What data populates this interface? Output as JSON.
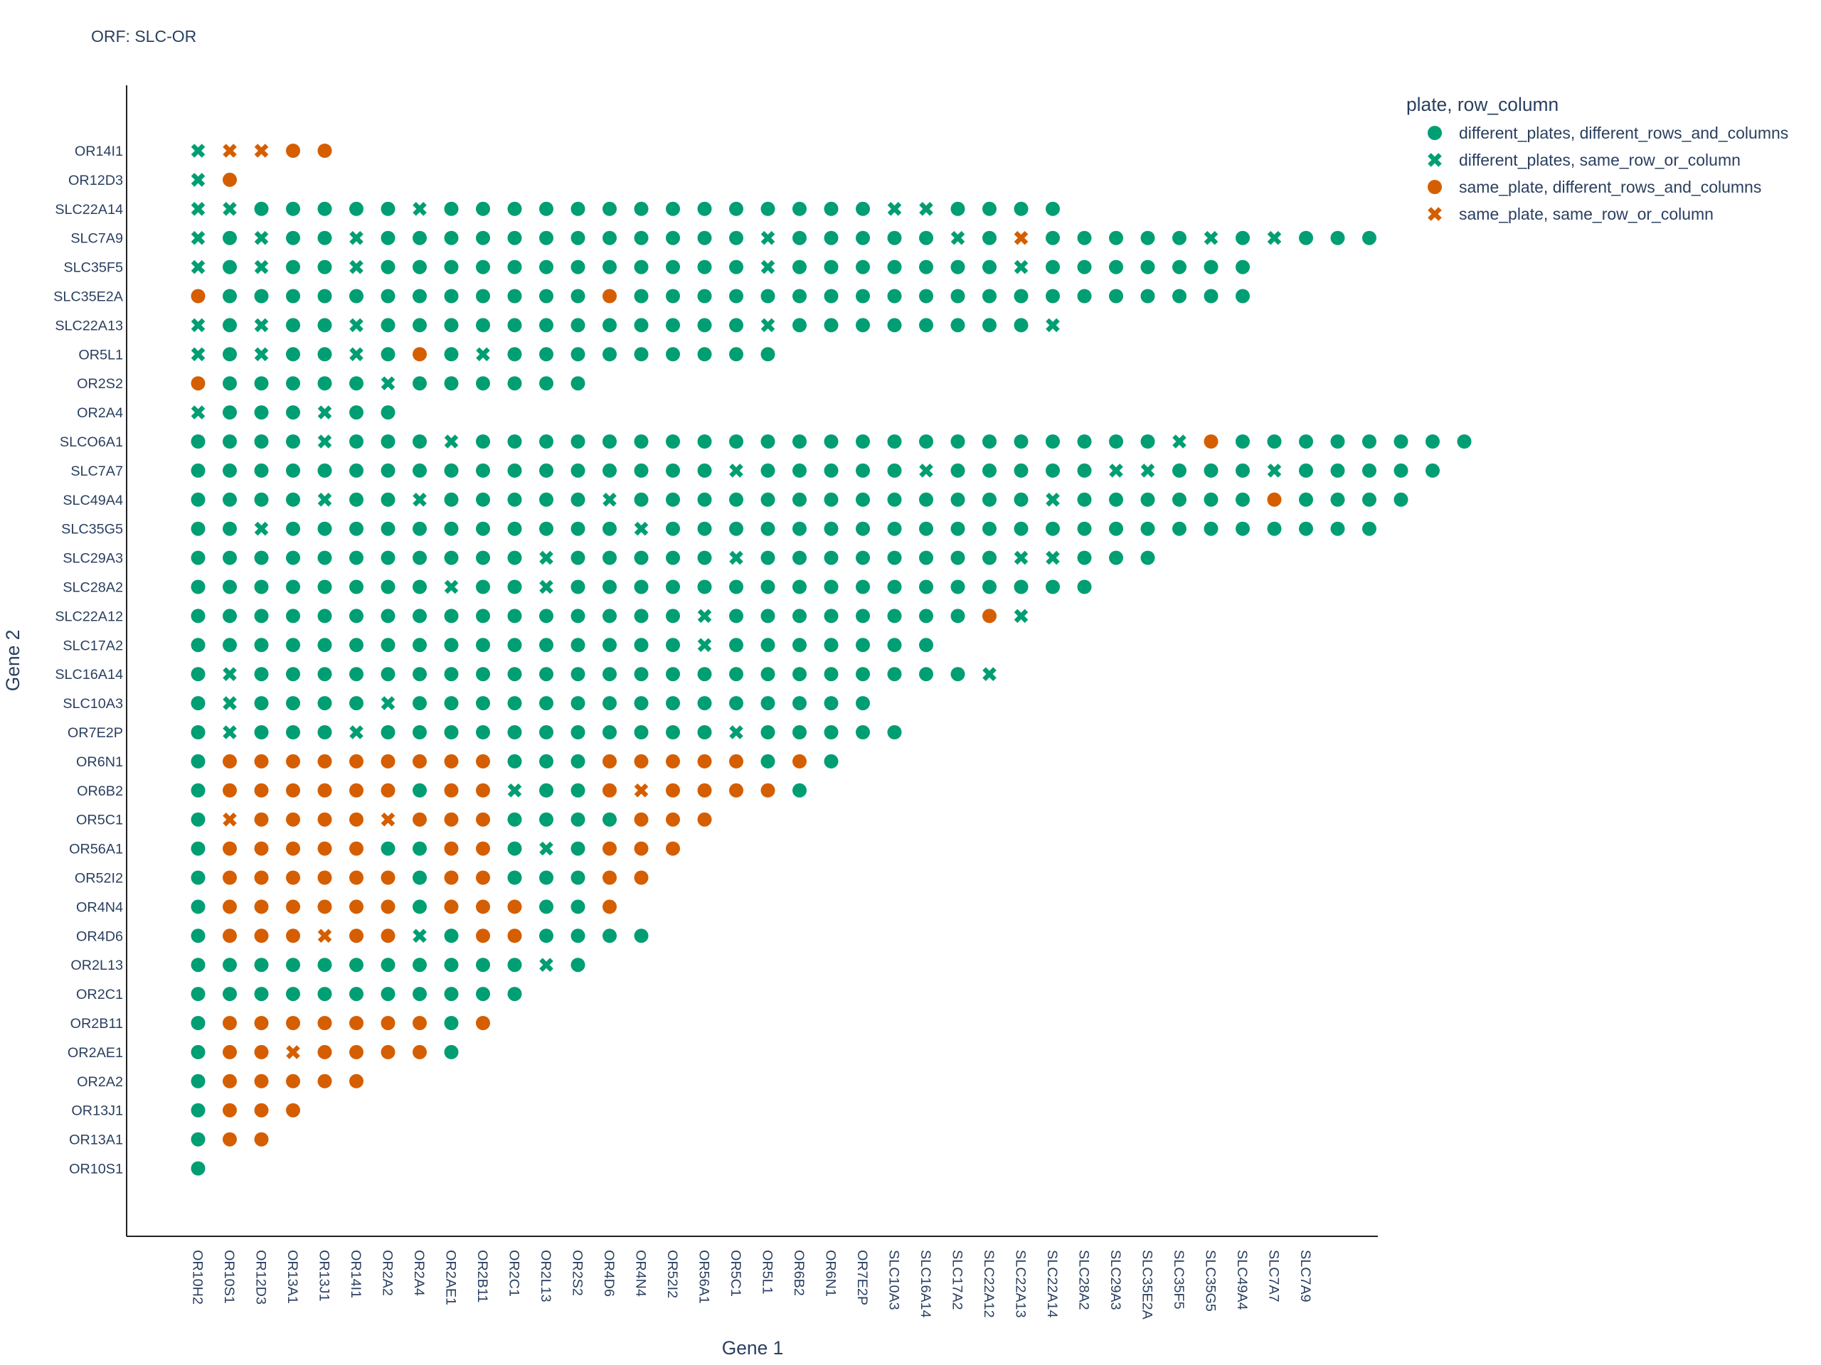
{
  "chart_data": {
    "type": "scatter",
    "title": "ORF: SLC-OR",
    "xlabel": "Gene 1",
    "ylabel": "Gene 2",
    "legend_title": "plate, row_column",
    "legend_position": "top-right",
    "grid": false,
    "x_categories": [
      "OR10H2",
      "OR10S1",
      "OR12D3",
      "OR13A1",
      "OR13J1",
      "OR14I1",
      "OR2A2",
      "OR2A4",
      "OR2AE1",
      "OR2B11",
      "OR2C1",
      "OR2L13",
      "OR2S2",
      "OR4D6",
      "OR4N4",
      "OR52I2",
      "OR56A1",
      "OR5C1",
      "OR5L1",
      "OR6B2",
      "OR6N1",
      "OR7E2P",
      "SLC10A3",
      "SLC16A14",
      "SLC17A2",
      "SLC22A12",
      "SLC22A13",
      "SLC22A14",
      "SLC28A2",
      "SLC29A3",
      "SLC35E2A",
      "SLC35F5",
      "SLC35G5",
      "SLC49A4",
      "SLC7A7",
      "SLC7A9"
    ],
    "y_categories": [
      "OR10S1",
      "OR13A1",
      "OR13J1",
      "OR2A2",
      "OR2AE1",
      "OR2B11",
      "OR2C1",
      "OR2L13",
      "OR4D6",
      "OR4N4",
      "OR52I2",
      "OR56A1",
      "OR5C1",
      "OR6B2",
      "OR6N1",
      "OR7E2P",
      "SLC10A3",
      "SLC16A14",
      "SLC17A2",
      "SLC22A12",
      "SLC28A2",
      "SLC29A3",
      "SLC35G5",
      "SLC49A4",
      "SLC7A7",
      "SLCO6A1",
      "OR2A4",
      "OR2S2",
      "OR5L1",
      "SLC22A13",
      "SLC35E2A",
      "SLC35F5",
      "SLC7A9",
      "SLC22A14",
      "OR12D3",
      "OR14I1"
    ],
    "series": [
      {
        "name": "different_plates, different_rows_and_columns",
        "color": "#009e73",
        "symbol": "circle"
      },
      {
        "name": "different_plates, same_row_or_column",
        "color": "#009e73",
        "symbol": "x"
      },
      {
        "name": "same_plate, different_rows_and_columns",
        "color": "#d55e00",
        "symbol": "circle"
      },
      {
        "name": "same_plate, same_row_or_column",
        "color": "#d55e00",
        "symbol": "x"
      }
    ],
    "legend_order": [
      0,
      1,
      2,
      3
    ],
    "rows": [
      {
        "y": "OR14I1",
        "codes": "13322"
      },
      {
        "y": "OR12D3",
        "codes": "12"
      },
      {
        "y": "SLC22A14",
        "codes": "1100000100000000000000110000"
      },
      {
        "y": "SLC7A9",
        "codes": "10100100000000000010000010300000101000"
      },
      {
        "y": "SLC35F5",
        "codes": "1010010000000000001000000010000000"
      },
      {
        "y": "SLC35E2A",
        "codes": "2000000000000200000000000000000000"
      },
      {
        "y": "SLC22A13",
        "codes": "1010010000000000001000000001"
      },
      {
        "y": "OR5L1",
        "codes": "1010010201000000000"
      },
      {
        "y": "OR2S2",
        "codes": "2000001000000"
      },
      {
        "y": "OR2A4",
        "codes": "1000100"
      },
      {
        "y": "SLCO6A1",
        "codes": "00001000100000000000000000000001200000000"
      },
      {
        "y": "SLC7A7",
        "codes": "0000000000000000010000010000011000100000"
      },
      {
        "y": "SLC49A4",
        "codes": "000010010000010000000000000100000020000"
      },
      {
        "y": "SLC35G5",
        "codes": "00100000000000100000000000000000000000"
      },
      {
        "y": "SLC29A3",
        "codes": "0000000000010000010000000011000"
      },
      {
        "y": "SLC28A2",
        "codes": "00000000100100000000000000000"
      },
      {
        "y": "SLC22A12",
        "codes": "000000000000000010000000021"
      },
      {
        "y": "SLC17A2",
        "codes": "000000000000000010000000"
      },
      {
        "y": "SLC16A14",
        "codes": "01000000000000000000000001"
      },
      {
        "y": "SLC10A3",
        "codes": "0100001000000000000000"
      },
      {
        "y": "OR7E2P",
        "codes": "01000100000000000100000"
      },
      {
        "y": "OR6N1",
        "codes": "022222222200022222020"
      },
      {
        "y": "OR6B2",
        "codes": "02222220221002322220"
      },
      {
        "y": "OR5C1",
        "codes": "03222232220000222"
      },
      {
        "y": "OR56A1",
        "codes": "0222220022010222"
      },
      {
        "y": "OR52I2",
        "codes": "022222202200022"
      },
      {
        "y": "OR4N4",
        "codes": "02222220222002"
      },
      {
        "y": "OR4D6",
        "codes": "022232210220000"
      },
      {
        "y": "OR2L13",
        "codes": "0000000000010"
      },
      {
        "y": "OR2C1",
        "codes": "00000000000"
      },
      {
        "y": "OR2B11",
        "codes": "0222222202"
      },
      {
        "y": "OR2AE1",
        "codes": "022322220"
      },
      {
        "y": "OR2A2",
        "codes": "022222"
      },
      {
        "y": "OR13J1",
        "codes": "0222"
      },
      {
        "y": "OR13A1",
        "codes": "022"
      },
      {
        "y": "OR10S1",
        "codes": "0"
      }
    ]
  }
}
